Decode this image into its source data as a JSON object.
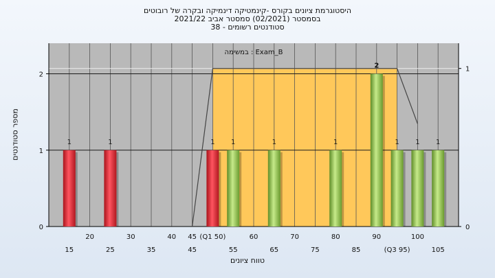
{
  "titles": [
    "היסטוגרמת ציונים בקורס -קינמטיקה דינמיקה ובקרה של רובוטים",
    "בסמסטר  (02/2021)  סמסטר אביב 2021/22",
    "סטודנטים רשומים - 38"
  ],
  "colors": {
    "plot_bg": "#b9b9b9",
    "quartile_band": "#ffc85a",
    "below_median_bar": "#e0323a",
    "above_median_bar": "#8fc44e",
    "grid": "#1a1a1a"
  },
  "chart_data": {
    "type": "bar",
    "title": "היסטוגרמת ציונים בקורס -קינמטיקה דינמיקה ובקרה של רובוטים",
    "xlabel": "טווח ציונים",
    "ylabel": "מספר סטודנטים",
    "annotation": "במשימה : Exam_B",
    "xlim": [
      10,
      110
    ],
    "ylim": [
      0,
      2.4
    ],
    "y_ticks": [
      0,
      1,
      2
    ],
    "y2_ticks": [
      0,
      1
    ],
    "x_ticks_upper": [
      "20",
      "30",
      "40",
      "45",
      "(Q1 50)",
      "60",
      "70",
      "80",
      "90",
      "100"
    ],
    "x_ticks_lower": [
      "15",
      "25",
      "35",
      "45",
      "55",
      "65",
      "75",
      "85",
      "(Q3 95)",
      "105"
    ],
    "x_ticks_upper_pos": [
      20,
      30,
      40,
      45,
      50,
      60,
      70,
      80,
      90,
      100
    ],
    "x_ticks_lower_pos": [
      15,
      25,
      35,
      45,
      55,
      65,
      75,
      85,
      95,
      105
    ],
    "quartiles": {
      "q1": 50,
      "q3": 95
    },
    "bars": [
      {
        "x": 15,
        "value": 1,
        "label": "1",
        "color": "red"
      },
      {
        "x": 25,
        "value": 1,
        "label": "1",
        "color": "red"
      },
      {
        "x": 50,
        "value": 1,
        "label": "1",
        "color": "red"
      },
      {
        "x": 55,
        "value": 1,
        "label": "1",
        "color": "green"
      },
      {
        "x": 65,
        "value": 1,
        "label": "1",
        "color": "green"
      },
      {
        "x": 80,
        "value": 1,
        "label": "1",
        "color": "green"
      },
      {
        "x": 90,
        "value": 2,
        "label": "2",
        "color": "green"
      },
      {
        "x": 95,
        "value": 1,
        "label": "1",
        "color": "green"
      },
      {
        "x": 100,
        "value": 1,
        "label": "1",
        "color": "green"
      },
      {
        "x": 105,
        "value": 1,
        "label": "1",
        "color": "green"
      }
    ],
    "cumulative_line": [
      [
        45,
        0
      ],
      [
        50,
        1
      ],
      [
        95,
        1
      ],
      [
        100,
        0.65
      ]
    ],
    "grid": true
  }
}
